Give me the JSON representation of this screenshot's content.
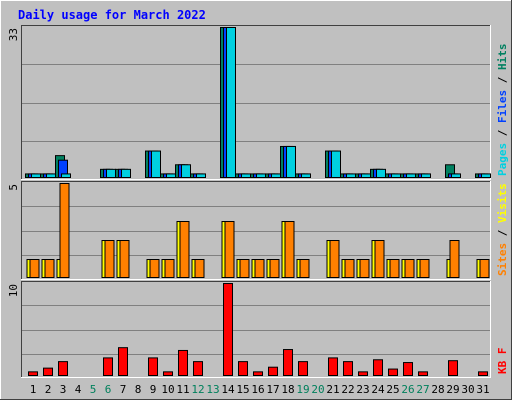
{
  "chart_data": {
    "type": "bar",
    "title": "Daily usage for March 2022",
    "days": [
      "1",
      "2",
      "3",
      "4",
      "5",
      "6",
      "7",
      "8",
      "9",
      "10",
      "11",
      "12",
      "13",
      "14",
      "15",
      "16",
      "17",
      "18",
      "19",
      "20",
      "21",
      "22",
      "23",
      "24",
      "25",
      "26",
      "27",
      "28",
      "29",
      "30",
      "31"
    ],
    "weekend_days": [
      "5",
      "6",
      "12",
      "13",
      "19",
      "20",
      "26",
      "27"
    ],
    "panels": [
      {
        "name": "hits-files-pages",
        "ymax": 33,
        "ymax_label": "33",
        "right_label": [
          {
            "text": "Pages",
            "color": "#00d0e0"
          },
          {
            "text": " / ",
            "color": "#000000"
          },
          {
            "text": "Files",
            "color": "#0040ff"
          },
          {
            "text": " / ",
            "color": "#000000"
          },
          {
            "text": "Hits",
            "color": "#008060"
          }
        ],
        "series": [
          {
            "name": "Hits",
            "color": "#008060",
            "values": [
              1,
              1,
              5,
              0,
              0,
              2,
              2,
              0,
              6,
              1,
              3,
              1,
              0,
              33,
              1,
              1,
              1,
              7,
              1,
              0,
              6,
              1,
              1,
              2,
              1,
              1,
              1,
              0,
              3,
              0,
              1
            ]
          },
          {
            "name": "Files",
            "color": "#0040ff",
            "values": [
              1,
              1,
              4,
              0,
              0,
              2,
              2,
              0,
              6,
              1,
              3,
              1,
              0,
              33,
              1,
              1,
              1,
              7,
              1,
              0,
              6,
              1,
              1,
              2,
              1,
              1,
              1,
              0,
              1,
              0,
              1
            ]
          },
          {
            "name": "Pages",
            "color": "#00d0e0",
            "values": [
              1,
              1,
              1,
              0,
              0,
              2,
              2,
              0,
              6,
              1,
              3,
              1,
              0,
              33,
              1,
              1,
              1,
              7,
              1,
              0,
              6,
              1,
              1,
              2,
              1,
              1,
              1,
              0,
              1,
              0,
              1
            ]
          }
        ]
      },
      {
        "name": "visits-sites",
        "ymax": 5,
        "ymax_label": "5",
        "right_label": [
          {
            "text": "Sites",
            "color": "#ff8000"
          },
          {
            "text": " / ",
            "color": "#000000"
          },
          {
            "text": "Visits",
            "color": "#ffff00"
          }
        ],
        "series": [
          {
            "name": "Visits",
            "color": "#ffff00",
            "values": [
              1,
              1,
              1,
              0,
              0,
              2,
              2,
              0,
              1,
              1,
              3,
              1,
              0,
              3,
              1,
              1,
              1,
              3,
              1,
              0,
              2,
              1,
              1,
              2,
              1,
              1,
              1,
              0,
              1,
              0,
              1
            ]
          },
          {
            "name": "Sites",
            "color": "#ff8000",
            "values": [
              1,
              1,
              5,
              0,
              0,
              2,
              2,
              0,
              1,
              1,
              3,
              1,
              0,
              3,
              1,
              1,
              1,
              3,
              1,
              0,
              2,
              1,
              1,
              2,
              1,
              1,
              1,
              0,
              2,
              0,
              1
            ]
          }
        ]
      },
      {
        "name": "kbytes",
        "ymax": 10,
        "ymax_label": "10",
        "right_label": [
          {
            "text": "KB F",
            "color": "#ff0000"
          }
        ],
        "series": [
          {
            "name": "KB F",
            "color": "#ff0000",
            "values": [
              0.5,
              0.9,
              1.6,
              0,
              0,
              2.0,
              3.1,
              0,
              2.0,
              0.5,
              2.8,
              1.6,
              0,
              10,
              1.6,
              0.5,
              1.0,
              2.9,
              1.6,
              0,
              2.0,
              1.6,
              0.5,
              1.8,
              0.8,
              1.5,
              0.5,
              0,
              1.7,
              0,
              0.5
            ]
          }
        ]
      }
    ],
    "colors": {
      "background": "#c0c0c0",
      "title": "#0000ff",
      "weekday_label": "#000000",
      "weekend_label": "#00805c"
    }
  }
}
